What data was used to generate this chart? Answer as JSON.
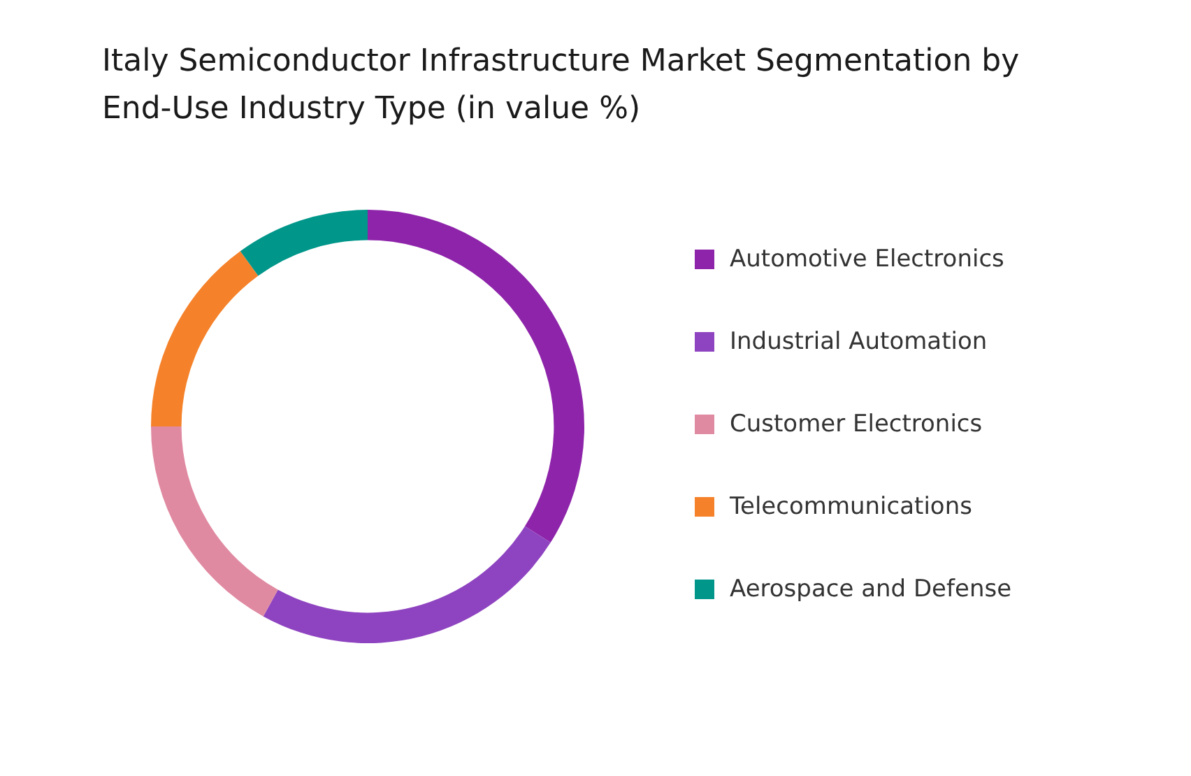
{
  "chart_data": {
    "type": "donut",
    "title": "Italy Semiconductor Infrastructure Market Segmentation by End-Use Industry Type (in value %)",
    "categories": [
      "Automotive Electronics",
      "Industrial Automation",
      "Customer Electronics",
      "Telecommunications",
      "Aerospace and Defense"
    ],
    "values": [
      34,
      24,
      17,
      15,
      10
    ],
    "colors": [
      "#8e24aa",
      "#8e44c0",
      "#e08aa2",
      "#f5822a",
      "#00968a"
    ],
    "legend": "right"
  }
}
